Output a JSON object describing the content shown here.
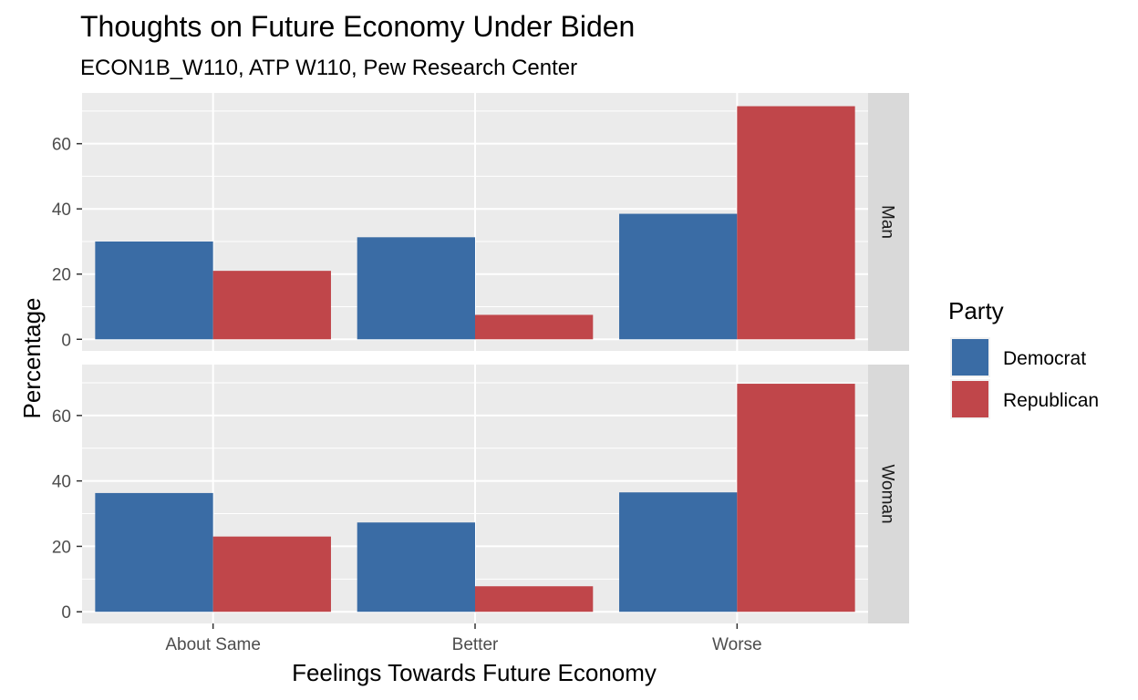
{
  "chart_data": {
    "type": "bar",
    "title": "Thoughts on Future Economy Under Biden",
    "subtitle": "ECON1B_W110, ATP W110, Pew Research Center",
    "xlabel": "Feelings Towards Future Economy",
    "ylabel": "Percentage",
    "categories": [
      "About Same",
      "Better",
      "Worse"
    ],
    "ylim": [
      0,
      72
    ],
    "yticks": [
      0,
      20,
      40,
      60
    ],
    "grid": true,
    "legend": {
      "title": "Party",
      "position": "right",
      "items": [
        {
          "name": "Democrat",
          "color": "#3A6CA5"
        },
        {
          "name": "Republican",
          "color": "#C0464A"
        }
      ]
    },
    "facets": [
      {
        "label": "Man",
        "series": [
          {
            "name": "Democrat",
            "values": [
              30,
              31.3,
              38.5
            ]
          },
          {
            "name": "Republican",
            "values": [
              21,
              7.5,
              71.5
            ]
          }
        ]
      },
      {
        "label": "Woman",
        "series": [
          {
            "name": "Democrat",
            "values": [
              36.3,
              27.3,
              36.5
            ]
          },
          {
            "name": "Republican",
            "values": [
              23,
              7.8,
              69.7
            ]
          }
        ]
      }
    ]
  }
}
